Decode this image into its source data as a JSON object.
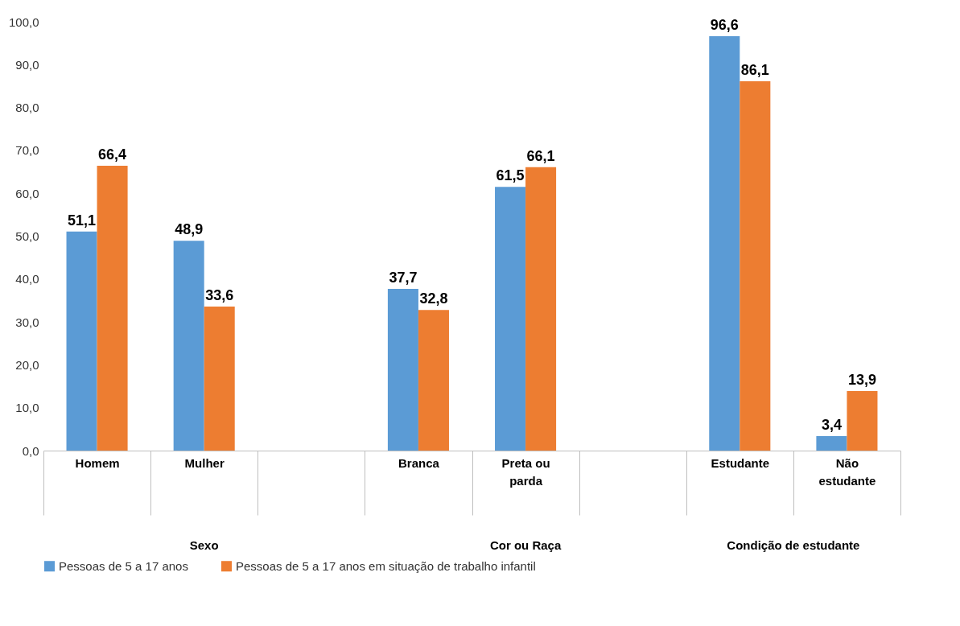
{
  "chart_data": {
    "type": "bar",
    "categories": [
      "Homem",
      "Mulher",
      null,
      "Branca",
      "Preta ou parda",
      null,
      "Estudante",
      "Não estudante"
    ],
    "series": [
      {
        "name": "Pessoas de 5 a 17 anos",
        "color": "#5b9bd5",
        "values": [
          51.1,
          48.9,
          null,
          37.7,
          61.5,
          null,
          96.6,
          3.4
        ],
        "value_labels": [
          "51,1",
          "48,9",
          null,
          "37,7",
          "61,5",
          null,
          "96,6",
          "3,4"
        ]
      },
      {
        "name": "Pessoas de 5 a 17 anos em situação de trabalho infantil",
        "color": "#ed7d31",
        "values": [
          66.4,
          33.6,
          null,
          32.8,
          66.1,
          null,
          86.1,
          13.9
        ],
        "value_labels": [
          "66,4",
          "33,6",
          null,
          "32,8",
          "66,1",
          null,
          "86,1",
          "13,9"
        ]
      }
    ],
    "annotations": [
      "Sexo",
      "Cor ou Raça",
      "Condição de estudante"
    ],
    "ylim": [
      0,
      100
    ],
    "yticks": [
      {
        "value": 0,
        "label": "0,0"
      },
      {
        "value": 10,
        "label": "10,0"
      },
      {
        "value": 20,
        "label": "20,0"
      },
      {
        "value": 30,
        "label": "30,0"
      },
      {
        "value": 40,
        "label": "40,0"
      },
      {
        "value": 50,
        "label": "50,0"
      },
      {
        "value": 60,
        "label": "60,0"
      },
      {
        "value": 70,
        "label": "70,0"
      },
      {
        "value": 80,
        "label": "80,0"
      },
      {
        "value": 90,
        "label": "90,0"
      },
      {
        "value": 100,
        "label": "100,0"
      }
    ],
    "grid": false,
    "legend": "bottom"
  }
}
